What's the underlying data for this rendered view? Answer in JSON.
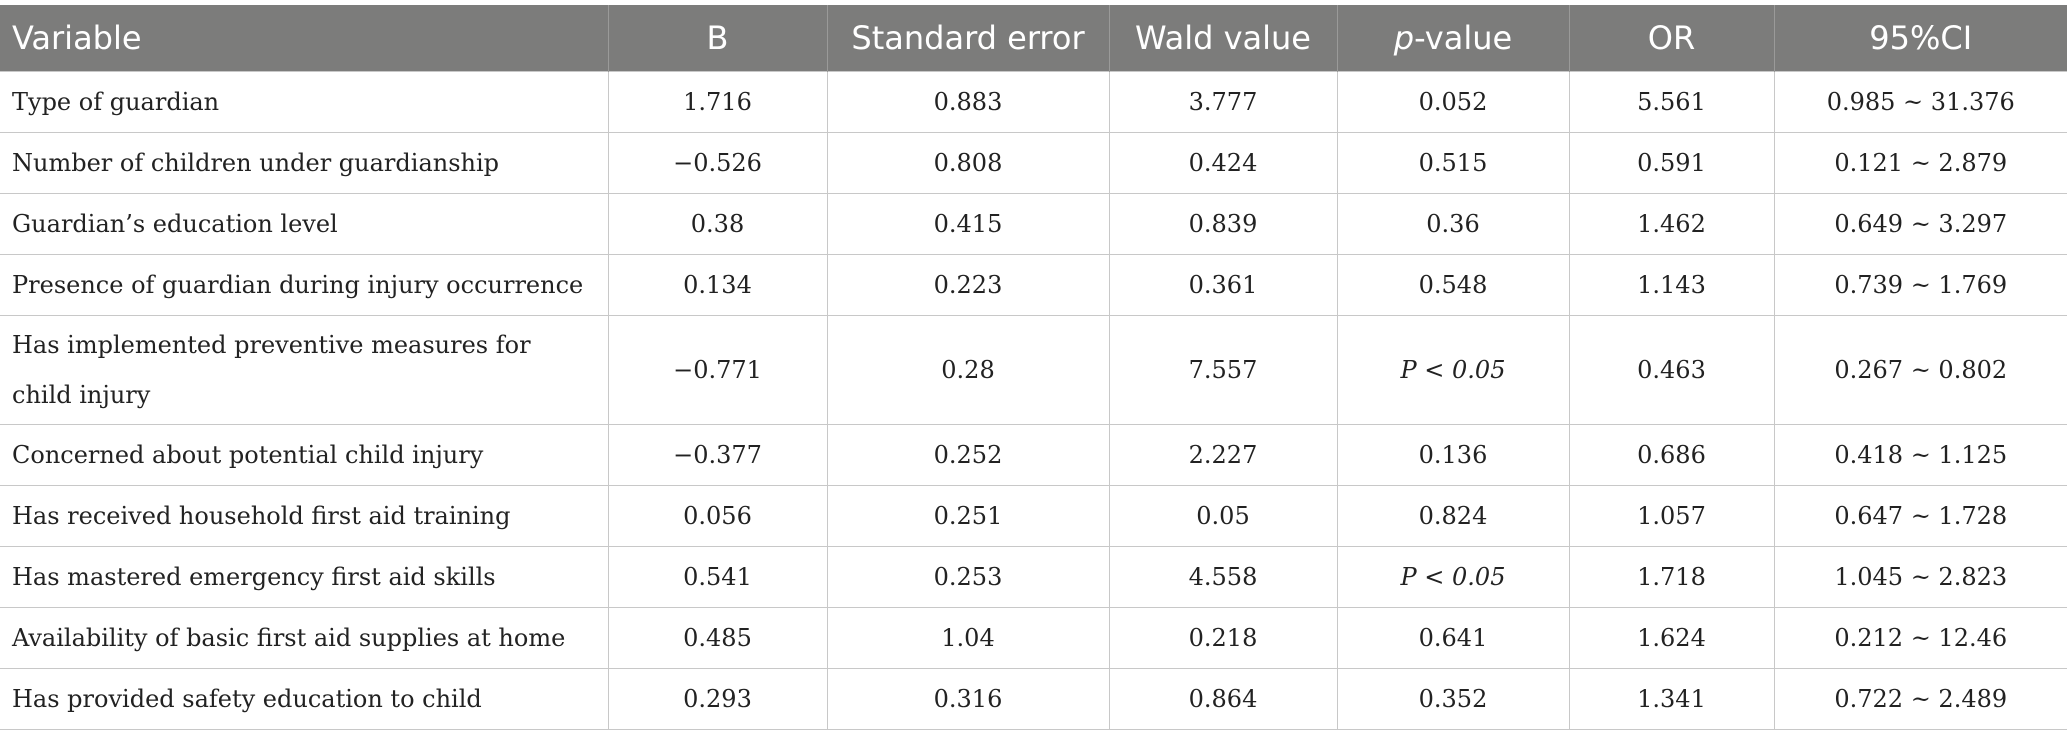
{
  "table": {
    "headers": {
      "variable": "Variable",
      "b": "B",
      "standard_error": "Standard error",
      "wald_value": "Wald value",
      "p_value_p": "p",
      "p_value_rest": "-value",
      "or": "OR",
      "ci": "95%CI"
    },
    "rows": [
      {
        "variable": "Type of guardian",
        "b": "1.716",
        "se": "0.883",
        "wald": "3.777",
        "p": "0.052",
        "or": "5.561",
        "ci": "0.985 ~ 31.376"
      },
      {
        "variable": "Number of children under guardianship",
        "b": "−0.526",
        "se": "0.808",
        "wald": "0.424",
        "p": "0.515",
        "or": "0.591",
        "ci": "0.121 ~ 2.879"
      },
      {
        "variable": "Guardian’s education level",
        "b": "0.38",
        "se": "0.415",
        "wald": "0.839",
        "p": "0.36",
        "or": "1.462",
        "ci": "0.649 ~ 3.297"
      },
      {
        "variable": "Presence of guardian during injury occurrence",
        "b": "0.134",
        "se": "0.223",
        "wald": "0.361",
        "p": "0.548",
        "or": "1.143",
        "ci": "0.739 ~ 1.769"
      },
      {
        "variable": "Has implemented preventive measures for child injury",
        "b": "−0.771",
        "se": "0.28",
        "wald": "7.557",
        "p": "P < 0.05",
        "or": "0.463",
        "ci": "0.267 ~ 0.802"
      },
      {
        "variable": "Concerned about potential child injury",
        "b": "−0.377",
        "se": "0.252",
        "wald": "2.227",
        "p": "0.136",
        "or": "0.686",
        "ci": "0.418 ~ 1.125"
      },
      {
        "variable": "Has received household first aid training",
        "b": "0.056",
        "se": "0.251",
        "wald": "0.05",
        "p": "0.824",
        "or": "1.057",
        "ci": "0.647 ~ 1.728"
      },
      {
        "variable": "Has mastered emergency first aid skills",
        "b": "0.541",
        "se": "0.253",
        "wald": "4.558",
        "p": "P < 0.05",
        "or": "1.718",
        "ci": "1.045 ~ 2.823"
      },
      {
        "variable": "Availability of basic first aid supplies at home",
        "b": "0.485",
        "se": "1.04",
        "wald": "0.218",
        "p": "0.641",
        "or": "1.624",
        "ci": "0.212 ~ 12.46"
      },
      {
        "variable": "Has provided safety education to child",
        "b": "0.293",
        "se": "0.316",
        "wald": "0.864",
        "p": "0.352",
        "or": "1.341",
        "ci": "0.722 ~ 2.489"
      }
    ]
  }
}
